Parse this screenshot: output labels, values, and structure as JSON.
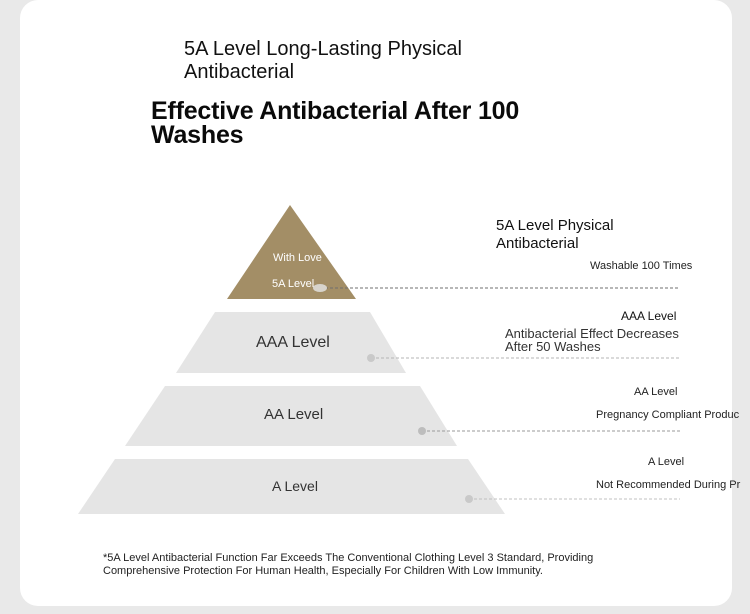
{
  "header": {
    "subtitle": "5A Level Long-Lasting Physical Antibacterial",
    "title": "Effective Antibacterial After 100 Washes"
  },
  "pyramid": {
    "top": {
      "line1": "With Love",
      "line2": "5A Level"
    },
    "tiers": [
      "AAA Level",
      "AA Level",
      "A Level"
    ]
  },
  "details": [
    {
      "title": "5A Level Physical Antibacterial",
      "desc": "Washable 100 Times"
    },
    {
      "title": "AAA Level",
      "desc": "Antibacterial Effect Decreases After 50 Washes"
    },
    {
      "title": "AA Level",
      "desc": "Pregnancy Compliant Produc"
    },
    {
      "title": "A Level",
      "desc": "Not Recommended During Pr"
    }
  ],
  "footnote": "*5A Level Antibacterial Function Far Exceeds The Conventional Clothing Level 3 Standard, Providing Comprehensive Protection For Human Health, Especially For Children With Low Immunity.",
  "colors": {
    "gold": "#a38e66",
    "tier": "#e5e5e5",
    "line": "#9a9a9a"
  }
}
